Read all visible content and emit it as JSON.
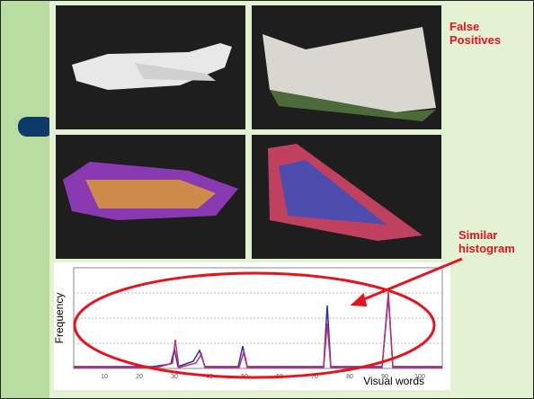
{
  "annotations": {
    "false_positives": "False Positives",
    "similar_histogram": "Similar histogram"
  },
  "histogram": {
    "y_label": "Frequency",
    "x_label": "Visual words",
    "xticks": [
      10,
      20,
      30,
      40,
      50,
      60,
      70,
      80,
      90,
      100
    ]
  }
}
